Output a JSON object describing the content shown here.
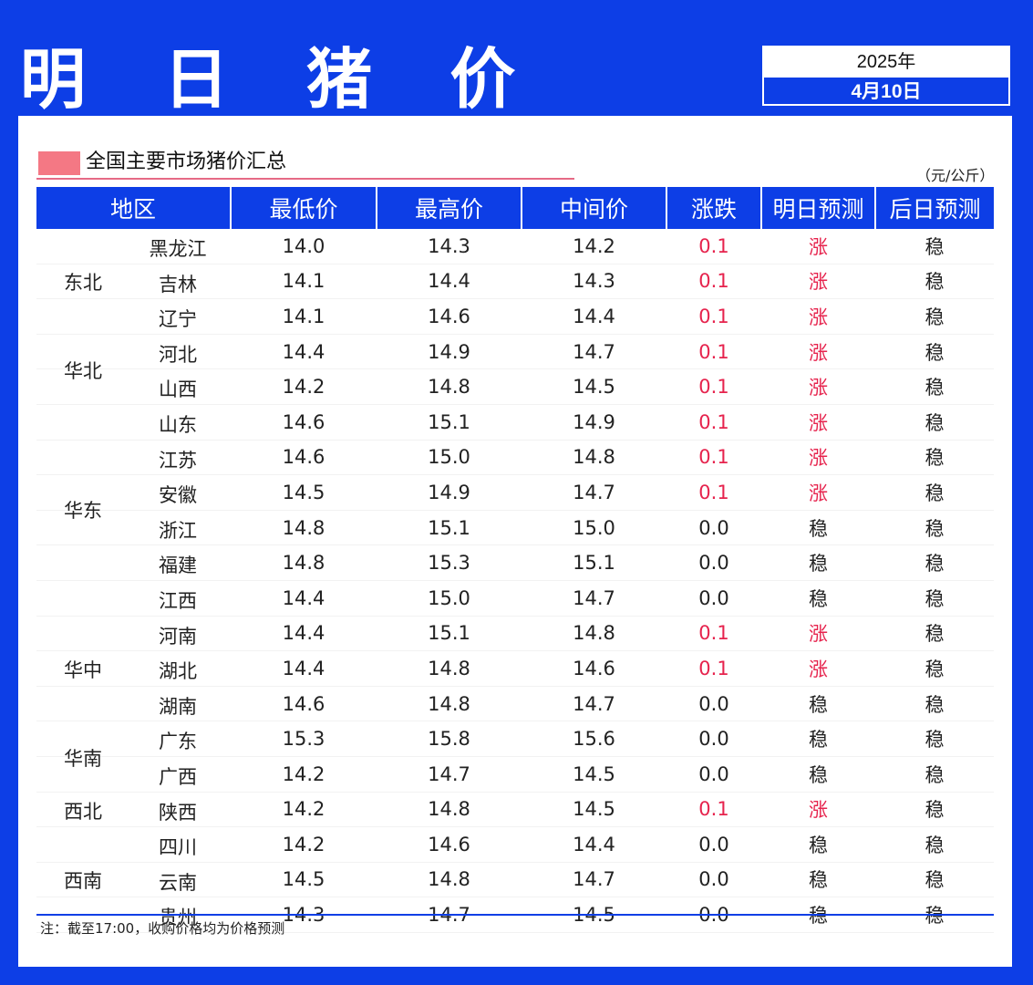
{
  "header": {
    "title": "明 日 猪 价",
    "year": "2025年",
    "date": "4月10日"
  },
  "subtitle": "全国主要市场猪价汇总",
  "unit": "（元/公斤）",
  "columns": [
    "地区",
    "最低价",
    "最高价",
    "中间价",
    "涨跌",
    "明日预测",
    "后日预测"
  ],
  "regions": [
    {
      "name": "东北",
      "rows": [
        {
          "province": "黑龙江",
          "low": "14.0",
          "high": "14.3",
          "mid": "14.2",
          "change": "0.1",
          "tomorrow": "涨",
          "after": "稳"
        },
        {
          "province": "吉林",
          "low": "14.1",
          "high": "14.4",
          "mid": "14.3",
          "change": "0.1",
          "tomorrow": "涨",
          "after": "稳"
        },
        {
          "province": "辽宁",
          "low": "14.1",
          "high": "14.6",
          "mid": "14.4",
          "change": "0.1",
          "tomorrow": "涨",
          "after": "稳"
        }
      ]
    },
    {
      "name": "华北",
      "rows": [
        {
          "province": "河北",
          "low": "14.4",
          "high": "14.9",
          "mid": "14.7",
          "change": "0.1",
          "tomorrow": "涨",
          "after": "稳"
        },
        {
          "province": "山西",
          "low": "14.2",
          "high": "14.8",
          "mid": "14.5",
          "change": "0.1",
          "tomorrow": "涨",
          "after": "稳"
        }
      ]
    },
    {
      "name": "华东",
      "rows": [
        {
          "province": "山东",
          "low": "14.6",
          "high": "15.1",
          "mid": "14.9",
          "change": "0.1",
          "tomorrow": "涨",
          "after": "稳"
        },
        {
          "province": "江苏",
          "low": "14.6",
          "high": "15.0",
          "mid": "14.8",
          "change": "0.1",
          "tomorrow": "涨",
          "after": "稳"
        },
        {
          "province": "安徽",
          "low": "14.5",
          "high": "14.9",
          "mid": "14.7",
          "change": "0.1",
          "tomorrow": "涨",
          "after": "稳"
        },
        {
          "province": "浙江",
          "low": "14.8",
          "high": "15.1",
          "mid": "15.0",
          "change": "0.0",
          "tomorrow": "稳",
          "after": "稳"
        },
        {
          "province": "福建",
          "low": "14.8",
          "high": "15.3",
          "mid": "15.1",
          "change": "0.0",
          "tomorrow": "稳",
          "after": "稳"
        },
        {
          "province": "江西",
          "low": "14.4",
          "high": "15.0",
          "mid": "14.7",
          "change": "0.0",
          "tomorrow": "稳",
          "after": "稳"
        }
      ]
    },
    {
      "name": "华中",
      "rows": [
        {
          "province": "河南",
          "low": "14.4",
          "high": "15.1",
          "mid": "14.8",
          "change": "0.1",
          "tomorrow": "涨",
          "after": "稳"
        },
        {
          "province": "湖北",
          "low": "14.4",
          "high": "14.8",
          "mid": "14.6",
          "change": "0.1",
          "tomorrow": "涨",
          "after": "稳"
        },
        {
          "province": "湖南",
          "low": "14.6",
          "high": "14.8",
          "mid": "14.7",
          "change": "0.0",
          "tomorrow": "稳",
          "after": "稳"
        }
      ]
    },
    {
      "name": "华南",
      "rows": [
        {
          "province": "广东",
          "low": "15.3",
          "high": "15.8",
          "mid": "15.6",
          "change": "0.0",
          "tomorrow": "稳",
          "after": "稳"
        },
        {
          "province": "广西",
          "low": "14.2",
          "high": "14.7",
          "mid": "14.5",
          "change": "0.0",
          "tomorrow": "稳",
          "after": "稳"
        }
      ]
    },
    {
      "name": "西北",
      "rows": [
        {
          "province": "陕西",
          "low": "14.2",
          "high": "14.8",
          "mid": "14.5",
          "change": "0.1",
          "tomorrow": "涨",
          "after": "稳"
        }
      ]
    },
    {
      "name": "西南",
      "rows": [
        {
          "province": "四川",
          "low": "14.2",
          "high": "14.6",
          "mid": "14.4",
          "change": "0.0",
          "tomorrow": "稳",
          "after": "稳"
        },
        {
          "province": "云南",
          "low": "14.5",
          "high": "14.8",
          "mid": "14.7",
          "change": "0.0",
          "tomorrow": "稳",
          "after": "稳"
        },
        {
          "province": "贵州",
          "low": "14.3",
          "high": "14.7",
          "mid": "14.5",
          "change": "0.0",
          "tomorrow": "稳",
          "after": "稳"
        }
      ]
    }
  ],
  "note": "注：截至17:00，收购价格均为价格预测",
  "colors": {
    "brand": "#0d3ee6",
    "up": "#e6234d",
    "marker": "#f47884"
  }
}
